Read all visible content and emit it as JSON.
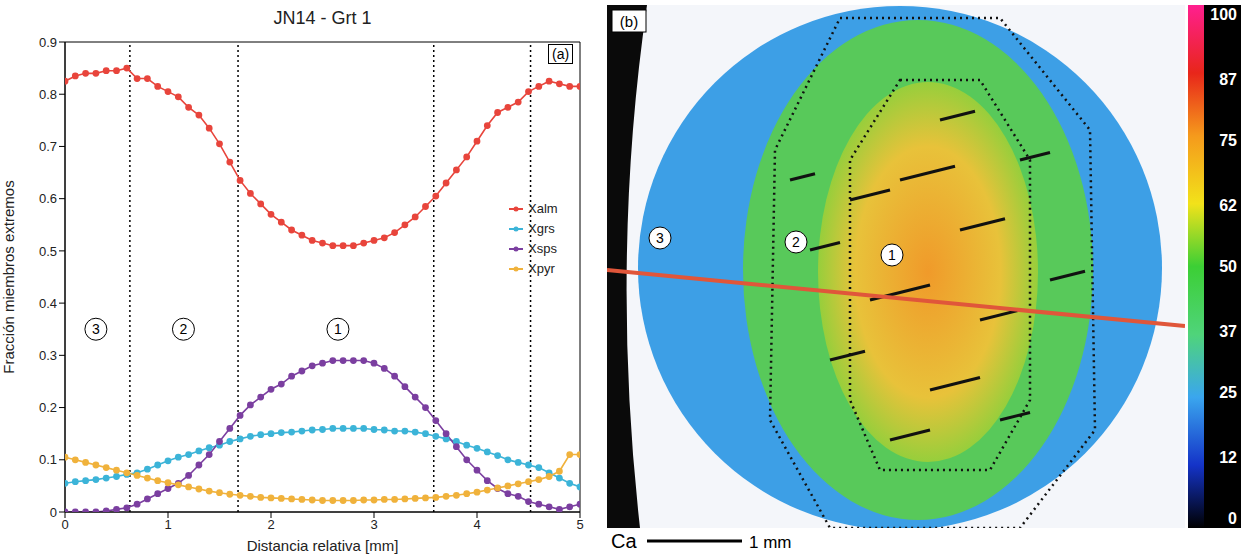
{
  "chart_data": {
    "type": "line",
    "title": "JN14 - Grt 1",
    "panel_label": "(a)",
    "x_label": "Distancia relativa [mm]",
    "y_label": "Fracción miembros extremos",
    "xlim": [
      0,
      5
    ],
    "xticks": [
      0,
      1,
      2,
      3,
      4,
      5
    ],
    "ylim": [
      0,
      0.9
    ],
    "yticks": [
      0,
      0.1,
      0.2,
      0.3,
      0.4,
      0.5,
      0.6,
      0.7,
      0.8,
      0.9
    ],
    "grid": false,
    "legend": "right",
    "marker": "circle",
    "vertical_lines": [
      0.63,
      1.68,
      3.58,
      4.52
    ],
    "annotations": [
      {
        "text": "3",
        "x": 0.3,
        "y": 0.35
      },
      {
        "text": "2",
        "x": 1.15,
        "y": 0.35
      },
      {
        "text": "1",
        "x": 2.65,
        "y": 0.35
      }
    ],
    "x": [
      0,
      0.1,
      0.2,
      0.3,
      0.4,
      0.5,
      0.6,
      0.7,
      0.8,
      0.9,
      1.0,
      1.1,
      1.2,
      1.3,
      1.4,
      1.5,
      1.6,
      1.7,
      1.8,
      1.9,
      2.0,
      2.1,
      2.2,
      2.3,
      2.4,
      2.5,
      2.6,
      2.7,
      2.8,
      2.9,
      3.0,
      3.1,
      3.2,
      3.3,
      3.4,
      3.5,
      3.6,
      3.7,
      3.8,
      3.9,
      4.0,
      4.1,
      4.2,
      4.3,
      4.4,
      4.5,
      4.6,
      4.7,
      4.8,
      4.9,
      5.0
    ],
    "series": [
      {
        "name": "Xalm",
        "color": "#e8453c",
        "values": [
          0.825,
          0.835,
          0.84,
          0.84,
          0.845,
          0.845,
          0.85,
          0.83,
          0.83,
          0.815,
          0.805,
          0.795,
          0.775,
          0.76,
          0.735,
          0.705,
          0.67,
          0.635,
          0.61,
          0.59,
          0.57,
          0.555,
          0.54,
          0.53,
          0.52,
          0.515,
          0.51,
          0.51,
          0.51,
          0.515,
          0.52,
          0.525,
          0.535,
          0.55,
          0.565,
          0.585,
          0.605,
          0.63,
          0.655,
          0.68,
          0.71,
          0.74,
          0.765,
          0.775,
          0.785,
          0.805,
          0.815,
          0.825,
          0.82,
          0.815,
          0.815
        ]
      },
      {
        "name": "Xgrs",
        "color": "#3cb4d8",
        "values": [
          0.055,
          0.058,
          0.06,
          0.062,
          0.065,
          0.068,
          0.072,
          0.075,
          0.082,
          0.09,
          0.098,
          0.105,
          0.11,
          0.117,
          0.123,
          0.128,
          0.135,
          0.14,
          0.145,
          0.148,
          0.15,
          0.152,
          0.153,
          0.155,
          0.157,
          0.158,
          0.16,
          0.16,
          0.16,
          0.16,
          0.158,
          0.157,
          0.155,
          0.155,
          0.153,
          0.15,
          0.145,
          0.14,
          0.135,
          0.128,
          0.122,
          0.115,
          0.108,
          0.1,
          0.095,
          0.09,
          0.085,
          0.075,
          0.065,
          0.055,
          0.048
        ]
      },
      {
        "name": "Xsps",
        "color": "#7b3fa0",
        "values": [
          0,
          0,
          0,
          0,
          0.002,
          0.005,
          0.008,
          0.015,
          0.025,
          0.035,
          0.045,
          0.055,
          0.07,
          0.09,
          0.11,
          0.135,
          0.16,
          0.185,
          0.205,
          0.22,
          0.235,
          0.245,
          0.26,
          0.27,
          0.28,
          0.285,
          0.29,
          0.29,
          0.29,
          0.29,
          0.285,
          0.275,
          0.26,
          0.24,
          0.22,
          0.2,
          0.175,
          0.15,
          0.125,
          0.1,
          0.08,
          0.06,
          0.045,
          0.035,
          0.03,
          0.02,
          0.015,
          0.01,
          0.005,
          0.01,
          0.015
        ]
      },
      {
        "name": "Xpyr",
        "color": "#f0b23c",
        "values": [
          0.105,
          0.1,
          0.095,
          0.09,
          0.085,
          0.08,
          0.075,
          0.07,
          0.065,
          0.06,
          0.056,
          0.052,
          0.048,
          0.044,
          0.04,
          0.037,
          0.034,
          0.032,
          0.03,
          0.028,
          0.027,
          0.026,
          0.025,
          0.024,
          0.023,
          0.022,
          0.022,
          0.022,
          0.022,
          0.023,
          0.023,
          0.024,
          0.024,
          0.025,
          0.026,
          0.027,
          0.028,
          0.03,
          0.032,
          0.035,
          0.038,
          0.042,
          0.046,
          0.05,
          0.054,
          0.058,
          0.062,
          0.068,
          0.078,
          0.11,
          0.11
        ]
      }
    ]
  },
  "map_panel": {
    "panel_label": "(b)",
    "element": "Ca",
    "scale_bar": "1 mm",
    "zone_labels": [
      "3",
      "2",
      "1"
    ],
    "colorbar": {
      "range": [
        0,
        100
      ],
      "ticks": [
        0,
        12,
        25,
        37,
        50,
        62,
        75,
        87,
        100
      ]
    }
  }
}
